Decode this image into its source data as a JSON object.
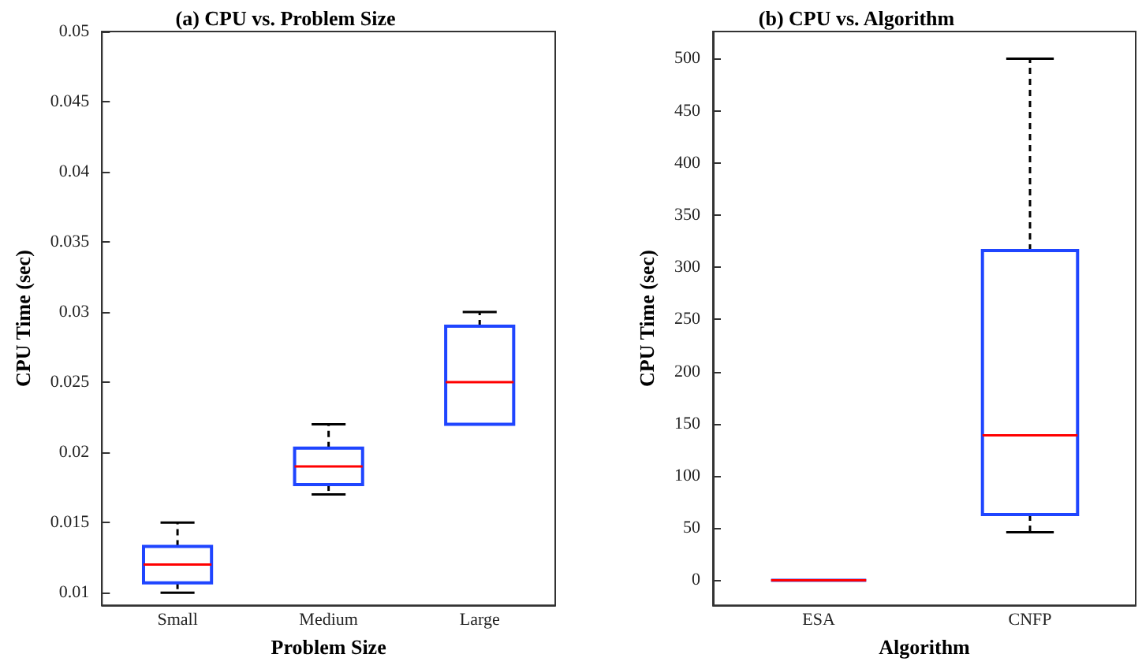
{
  "chart_data": [
    {
      "type": "box",
      "title": "(a) CPU vs. Problem Size",
      "xlabel": "Problem Size",
      "ylabel": "CPU Time (sec)",
      "categories": [
        "Small",
        "Medium",
        "Large"
      ],
      "series": [
        {
          "color": "#1f45ff",
          "boxes": [
            {
              "low": 0.01,
              "q1": 0.0107,
              "median": 0.012,
              "q3": 0.0133,
              "high": 0.015
            },
            {
              "low": 0.017,
              "q1": 0.0177,
              "median": 0.019,
              "q3": 0.0203,
              "high": 0.022
            },
            {
              "low": 0.022,
              "q1": 0.022,
              "median": 0.025,
              "q3": 0.029,
              "high": 0.03
            }
          ]
        }
      ],
      "ylim": [
        0.0091,
        0.05
      ],
      "yticks": [
        0.01,
        0.015,
        0.02,
        0.025,
        0.03,
        0.035,
        0.04,
        0.045,
        0.05
      ],
      "grid": false,
      "line_style": "dashed"
    },
    {
      "type": "box",
      "title": "(b) CPU vs. Algorithm",
      "xlabel": "Algorithm",
      "ylabel": "CPU Time (sec)",
      "categories": [
        "ESA",
        "CNFP"
      ],
      "series": [
        {
          "color": "#1f45ff",
          "boxes": [
            {
              "low": 0,
              "q1": 0,
              "median": 0,
              "q3": 0,
              "high": 0
            },
            {
              "low": 46,
              "q1": 63,
              "median": 139,
              "q3": 316,
              "high": 500
            }
          ]
        }
      ],
      "ylim": [
        -24,
        526
      ],
      "yticks": [
        0,
        50,
        100,
        150,
        200,
        250,
        300,
        350,
        400,
        450,
        500
      ],
      "grid": false,
      "line_style": "dashed"
    }
  ]
}
